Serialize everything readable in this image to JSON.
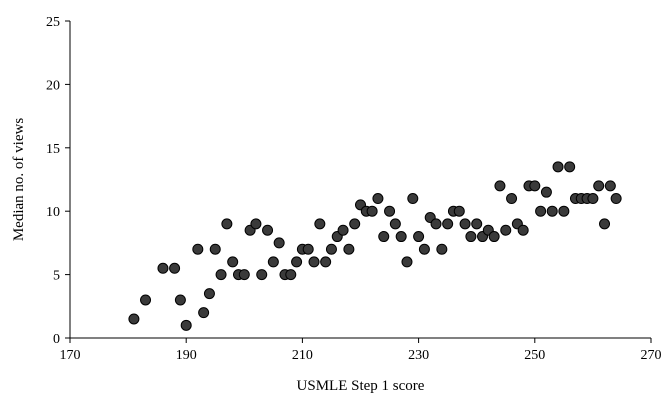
{
  "chart_data": {
    "type": "scatter",
    "xlabel": "USMLE Step 1 score",
    "ylabel": "Median no. of  views",
    "xlim": [
      170,
      270
    ],
    "ylim": [
      0,
      25
    ],
    "x_ticks": [
      "170",
      "190",
      "210",
      "230",
      "250",
      "270"
    ],
    "y_ticks": [
      "0",
      "5",
      "10",
      "15",
      "20",
      "25"
    ],
    "x_tick_values": [
      170,
      190,
      210,
      230,
      250,
      270
    ],
    "y_tick_values": [
      0,
      5,
      10,
      15,
      20,
      25
    ],
    "grid": false,
    "legend": "none",
    "marker_color": "#3a3a3a",
    "series": [
      {
        "points": [
          [
            181,
            1.5
          ],
          [
            183,
            3
          ],
          [
            186,
            5.5
          ],
          [
            188,
            5.5
          ],
          [
            189,
            3
          ],
          [
            190,
            1
          ],
          [
            192,
            7
          ],
          [
            193,
            2
          ],
          [
            194,
            3.5
          ],
          [
            195,
            7
          ],
          [
            196,
            5
          ],
          [
            197,
            9
          ],
          [
            198,
            6
          ],
          [
            199,
            5
          ],
          [
            200,
            5
          ],
          [
            201,
            8.5
          ],
          [
            202,
            9
          ],
          [
            203,
            5
          ],
          [
            204,
            8.5
          ],
          [
            205,
            6
          ],
          [
            206,
            7.5
          ],
          [
            207,
            5
          ],
          [
            208,
            5
          ],
          [
            209,
            6
          ],
          [
            210,
            7
          ],
          [
            211,
            7
          ],
          [
            212,
            6
          ],
          [
            213,
            9
          ],
          [
            214,
            6
          ],
          [
            215,
            7
          ],
          [
            216,
            8
          ],
          [
            217,
            8.5
          ],
          [
            218,
            7
          ],
          [
            219,
            9
          ],
          [
            220,
            10.5
          ],
          [
            221,
            10
          ],
          [
            222,
            10
          ],
          [
            223,
            11
          ],
          [
            224,
            8
          ],
          [
            225,
            10
          ],
          [
            226,
            9
          ],
          [
            227,
            8
          ],
          [
            228,
            6
          ],
          [
            229,
            11
          ],
          [
            230,
            8
          ],
          [
            231,
            7
          ],
          [
            232,
            9.5
          ],
          [
            233,
            9
          ],
          [
            234,
            7
          ],
          [
            235,
            9
          ],
          [
            236,
            10
          ],
          [
            237,
            10
          ],
          [
            238,
            9
          ],
          [
            239,
            8
          ],
          [
            240,
            9
          ],
          [
            241,
            8
          ],
          [
            242,
            8.5
          ],
          [
            243,
            8
          ],
          [
            244,
            12
          ],
          [
            245,
            8.5
          ],
          [
            246,
            11
          ],
          [
            247,
            9
          ],
          [
            248,
            8.5
          ],
          [
            249,
            12
          ],
          [
            250,
            12
          ],
          [
            251,
            10
          ],
          [
            252,
            11.5
          ],
          [
            253,
            10
          ],
          [
            254,
            13.5
          ],
          [
            255,
            10
          ],
          [
            256,
            13.5
          ],
          [
            257,
            11
          ],
          [
            258,
            11
          ],
          [
            259,
            11
          ],
          [
            260,
            11
          ],
          [
            261,
            12
          ],
          [
            262,
            9
          ],
          [
            263,
            12
          ],
          [
            264,
            11
          ]
        ]
      }
    ]
  }
}
